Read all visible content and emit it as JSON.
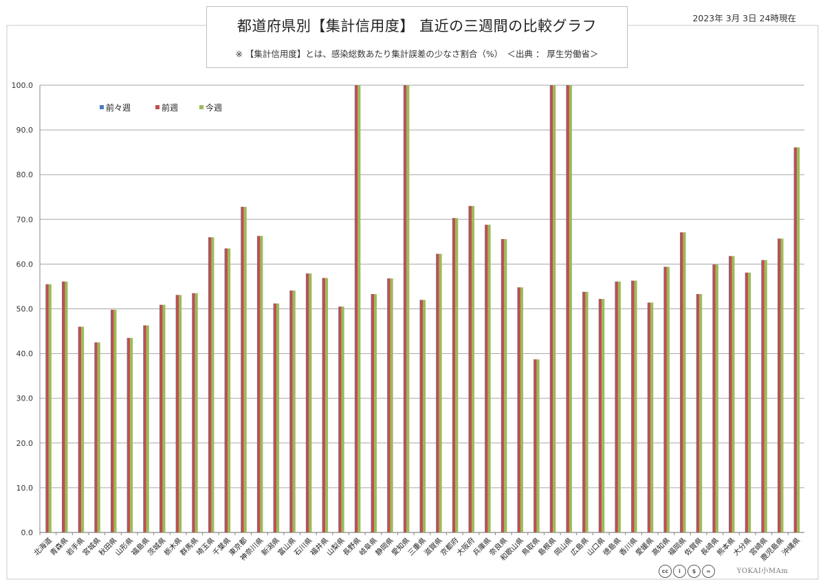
{
  "header": {
    "title": "都道府県別【集計信用度】 直近の三週間の比較グラフ",
    "subtitle": "※ 【集計信用度】とは、感染総数あたり集計誤差の少なさ割合（%）　＜出典 ： 厚生労働省＞",
    "date": "2023年 3月 3日 24時現在"
  },
  "credit": {
    "badges": [
      "cc",
      "i",
      "$",
      "="
    ],
    "brand": "YOKAI小MAm"
  },
  "colors": {
    "series0": "#4a7ebb",
    "series1": "#c0504d",
    "series2": "#9bbb59",
    "grid": "#a6a6a6",
    "axis": "#868686"
  },
  "chart_data": {
    "type": "bar",
    "ylim": [
      0,
      100
    ],
    "yticks": [
      "0.0",
      "10.0",
      "20.0",
      "30.0",
      "40.0",
      "50.0",
      "60.0",
      "70.0",
      "80.0",
      "90.0",
      "100.0"
    ],
    "grid": true,
    "legend_position": "top-left",
    "categories": [
      "北海道",
      "青森県",
      "岩手県",
      "宮城県",
      "秋田県",
      "山形県",
      "福島県",
      "茨城県",
      "栃木県",
      "群馬県",
      "埼玉県",
      "千葉県",
      "東京都",
      "神奈川県",
      "新潟県",
      "富山県",
      "石川県",
      "福井県",
      "山梨県",
      "長野県",
      "岐阜県",
      "静岡県",
      "愛知県",
      "三重県",
      "滋賀県",
      "京都府",
      "大阪府",
      "兵庫県",
      "奈良県",
      "和歌山県",
      "鳥取県",
      "島根県",
      "岡山県",
      "広島県",
      "山口県",
      "徳島県",
      "香川県",
      "愛媛県",
      "高知県",
      "福岡県",
      "佐賀県",
      "長崎県",
      "熊本県",
      "大分県",
      "宮崎県",
      "鹿児島県",
      "沖縄県"
    ],
    "series": [
      {
        "name": "前々週",
        "values": [
          55.5,
          56.1,
          46.0,
          42.5,
          49.8,
          43.5,
          46.3,
          50.9,
          53.1,
          53.5,
          66.0,
          63.5,
          72.8,
          66.3,
          51.2,
          54.1,
          57.9,
          56.9,
          50.5,
          100.0,
          53.3,
          56.8,
          100.0,
          52.0,
          62.3,
          70.3,
          73.0,
          68.8,
          65.6,
          54.8,
          38.7,
          100.0,
          100.0,
          53.8,
          52.2,
          56.1,
          56.3,
          51.4,
          59.4,
          67.1,
          53.3,
          59.9,
          61.8,
          58.1,
          60.9,
          65.7,
          86.1
        ]
      },
      {
        "name": "前週",
        "values": [
          55.5,
          56.1,
          46.0,
          42.5,
          49.8,
          43.5,
          46.3,
          50.9,
          53.1,
          53.5,
          66.0,
          63.5,
          72.8,
          66.3,
          51.2,
          54.1,
          57.9,
          56.9,
          50.5,
          100.0,
          53.3,
          56.8,
          100.0,
          52.0,
          62.3,
          70.3,
          73.0,
          68.8,
          65.6,
          54.8,
          38.7,
          100.0,
          100.0,
          53.8,
          52.2,
          56.1,
          56.3,
          51.4,
          59.4,
          67.1,
          53.3,
          59.9,
          61.8,
          58.1,
          60.9,
          65.7,
          86.1
        ]
      },
      {
        "name": "今週",
        "values": [
          55.5,
          56.1,
          46.0,
          42.5,
          49.8,
          43.5,
          46.3,
          50.9,
          53.1,
          53.5,
          66.0,
          63.5,
          72.8,
          66.3,
          51.2,
          54.1,
          57.9,
          56.9,
          50.5,
          100.0,
          53.3,
          56.8,
          100.0,
          52.0,
          62.3,
          70.3,
          73.0,
          68.8,
          65.6,
          54.8,
          38.7,
          100.0,
          100.0,
          53.8,
          52.2,
          56.1,
          56.3,
          51.4,
          59.4,
          67.1,
          53.3,
          59.9,
          61.8,
          58.1,
          60.9,
          65.7,
          86.1
        ]
      }
    ]
  }
}
